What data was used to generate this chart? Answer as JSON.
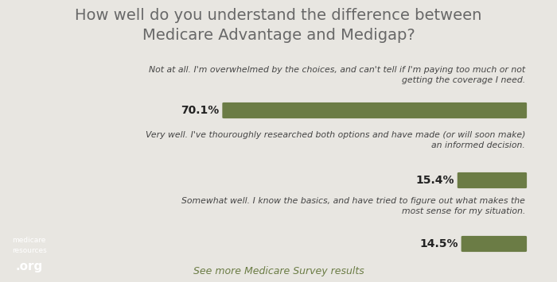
{
  "title": "How well do you understand the difference between\nMedicare Advantage and Medigap?",
  "background_color": "#e8e6e1",
  "bar_color": "#6b7c45",
  "title_color": "#686868",
  "text_color": "#444444",
  "label_color": "#222222",
  "footer_color": "#6b7c45",
  "bars": [
    {
      "value": 70.1,
      "label": "70.1%",
      "description": "Not at all. I'm overwhelmed by the choices, and can't tell if I'm paying too much or not\ngetting the coverage I need."
    },
    {
      "value": 15.4,
      "label": "15.4%",
      "description": "Very well. I've thouroughly researched both options and have made (or will soon make)\nan informed decision."
    },
    {
      "value": 14.5,
      "label": "14.5%",
      "description": "Somewhat well. I know the basics, and have tried to figure out what makes the\nmost sense for my situation."
    }
  ],
  "footer_text": "See more Medicare Survey results",
  "logo_bg_color": "#6b7c45",
  "logo_text_line1": "medicare",
  "logo_text_line2": "resources",
  "logo_text_line3": ".org"
}
